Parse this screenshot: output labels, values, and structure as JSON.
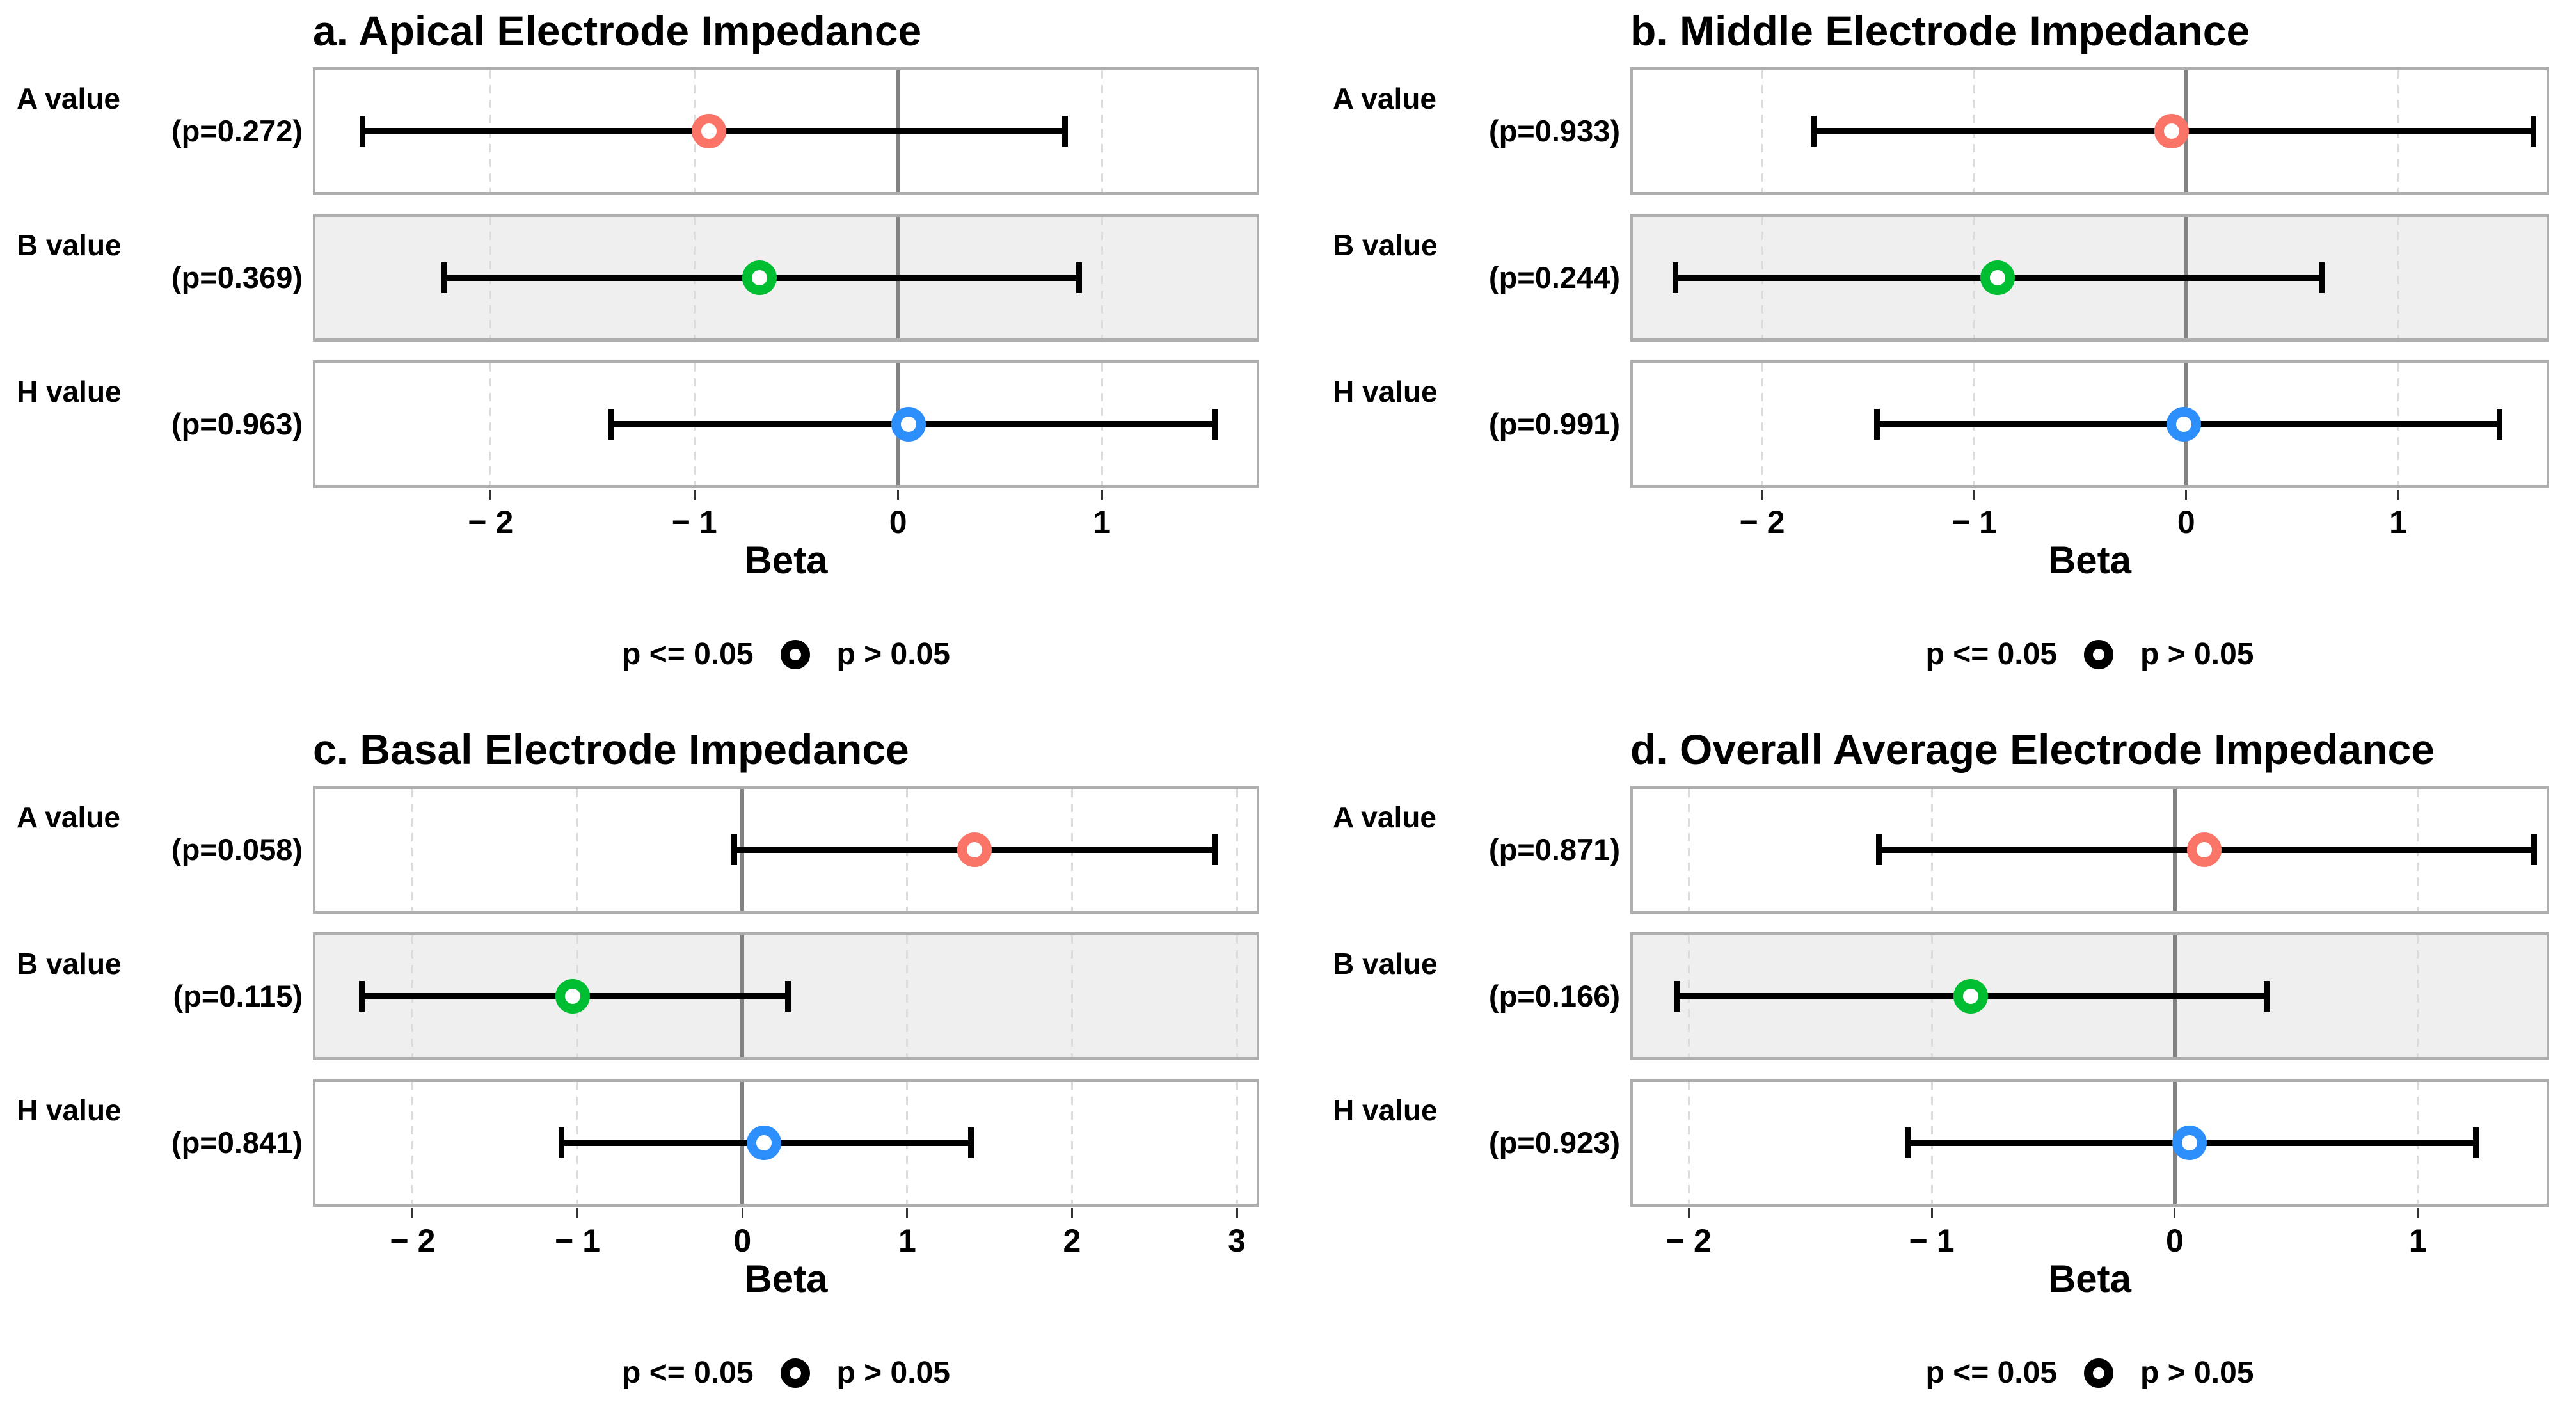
{
  "styles": {
    "background": "#FFFFFF",
    "dashed_grid_color": "#DCDCDC",
    "zero_line_color": "#828282",
    "panel_border_color": "#AEAEAE",
    "shaded_band_color": "#EFEFEF",
    "error_bar_color": "#000000",
    "marker_color_a_value": "#FB7468",
    "marker_color_b_value": "#00BE32",
    "marker_color_h_value": "#2D8FFB",
    "legend_marker": "open-circle-black"
  },
  "chart_data": [
    {
      "type": "scatter",
      "panel_id": "a",
      "title": "a. Apical Electrode Impedance",
      "xlabel": "Beta",
      "xlim": [
        -2.86,
        1.76
      ],
      "xticks": [
        {
          "v": -2,
          "label": "− 2"
        },
        {
          "v": -1,
          "label": "− 1"
        },
        {
          "v": 0,
          "label": "0"
        },
        {
          "v": 1,
          "label": "1"
        }
      ],
      "zero_reference_line": 0,
      "grid": "vertical dashed at ticks, solid at 0",
      "legend": {
        "significant": "p <= 0.05",
        "nonsignificant": "p > 0.05"
      },
      "rows": [
        {
          "label": "A value",
          "p_text": "(p=0.272)",
          "p": 0.272,
          "beta": -0.93,
          "ci": [
            -2.63,
            0.82
          ],
          "marker_color": "#FB7468",
          "band": "#FFFFFF"
        },
        {
          "label": "B value",
          "p_text": "(p=0.369)",
          "p": 0.369,
          "beta": -0.68,
          "ci": [
            -2.23,
            0.89
          ],
          "marker_color": "#00BE32",
          "band": "#EFEFEF"
        },
        {
          "label": "H value",
          "p_text": "(p=0.963)",
          "p": 0.963,
          "beta": 0.05,
          "ci": [
            -1.41,
            1.56
          ],
          "marker_color": "#2D8FFB",
          "band": "#FFFFFF"
        }
      ]
    },
    {
      "type": "scatter",
      "panel_id": "b",
      "title": "b. Middle Electrode Impedance",
      "xlabel": "Beta",
      "xlim": [
        -2.61,
        1.7
      ],
      "xticks": [
        {
          "v": -2,
          "label": "− 2"
        },
        {
          "v": -1,
          "label": "− 1"
        },
        {
          "v": 0,
          "label": "0"
        },
        {
          "v": 1,
          "label": "1"
        }
      ],
      "zero_reference_line": 0,
      "grid": "vertical dashed at ticks, solid at 0",
      "legend": {
        "significant": "p <= 0.05",
        "nonsignificant": "p > 0.05"
      },
      "rows": [
        {
          "label": "A value",
          "p_text": "(p=0.933)",
          "p": 0.933,
          "beta": -0.07,
          "ci": [
            -1.76,
            1.64
          ],
          "marker_color": "#FB7468",
          "band": "#FFFFFF"
        },
        {
          "label": "B value",
          "p_text": "(p=0.244)",
          "p": 0.244,
          "beta": -0.89,
          "ci": [
            -2.41,
            0.64
          ],
          "marker_color": "#00BE32",
          "band": "#EFEFEF"
        },
        {
          "label": "H value",
          "p_text": "(p=0.991)",
          "p": 0.991,
          "beta": -0.01,
          "ci": [
            -1.46,
            1.48
          ],
          "marker_color": "#2D8FFB",
          "band": "#FFFFFF"
        }
      ]
    },
    {
      "type": "scatter",
      "panel_id": "c",
      "title": "c. Basal Electrode Impedance",
      "xlabel": "Beta",
      "xlim": [
        -2.59,
        3.12
      ],
      "xticks": [
        {
          "v": -2,
          "label": "− 2"
        },
        {
          "v": -1,
          "label": "− 1"
        },
        {
          "v": 0,
          "label": "0"
        },
        {
          "v": 1,
          "label": "1"
        },
        {
          "v": 2,
          "label": "2"
        },
        {
          "v": 3,
          "label": "3"
        }
      ],
      "zero_reference_line": 0,
      "grid": "vertical dashed at ticks, solid at 0",
      "legend": {
        "significant": "p <= 0.05",
        "nonsignificant": "p > 0.05"
      },
      "rows": [
        {
          "label": "A value",
          "p_text": "(p=0.058)",
          "p": 0.058,
          "beta": 1.41,
          "ci": [
            -0.05,
            2.87
          ],
          "marker_color": "#FB7468",
          "band": "#FFFFFF"
        },
        {
          "label": "B value",
          "p_text": "(p=0.115)",
          "p": 0.115,
          "beta": -1.03,
          "ci": [
            -2.31,
            0.28
          ],
          "marker_color": "#00BE32",
          "band": "#EFEFEF"
        },
        {
          "label": "H value",
          "p_text": "(p=0.841)",
          "p": 0.841,
          "beta": 0.13,
          "ci": [
            -1.1,
            1.39
          ],
          "marker_color": "#2D8FFB",
          "band": "#FFFFFF"
        }
      ]
    },
    {
      "type": "scatter",
      "panel_id": "d",
      "title": "d. Overall Average Electrode Impedance",
      "xlabel": "Beta",
      "xlim": [
        -2.23,
        1.53
      ],
      "xticks": [
        {
          "v": -2,
          "label": "− 2"
        },
        {
          "v": -1,
          "label": "− 1"
        },
        {
          "v": 0,
          "label": "0"
        },
        {
          "v": 1,
          "label": "1"
        }
      ],
      "zero_reference_line": 0,
      "grid": "vertical dashed at ticks, solid at 0",
      "legend": {
        "significant": "p <= 0.05",
        "nonsignificant": "p > 0.05"
      },
      "rows": [
        {
          "label": "A value",
          "p_text": "(p=0.871)",
          "p": 0.871,
          "beta": 0.12,
          "ci": [
            -1.22,
            1.48
          ],
          "marker_color": "#FB7468",
          "band": "#FFFFFF"
        },
        {
          "label": "B value",
          "p_text": "(p=0.166)",
          "p": 0.166,
          "beta": -0.84,
          "ci": [
            -2.05,
            0.38
          ],
          "marker_color": "#00BE32",
          "band": "#EFEFEF"
        },
        {
          "label": "H value",
          "p_text": "(p=0.923)",
          "p": 0.923,
          "beta": 0.06,
          "ci": [
            -1.1,
            1.24
          ],
          "marker_color": "#2D8FFB",
          "band": "#FFFFFF"
        }
      ]
    }
  ]
}
